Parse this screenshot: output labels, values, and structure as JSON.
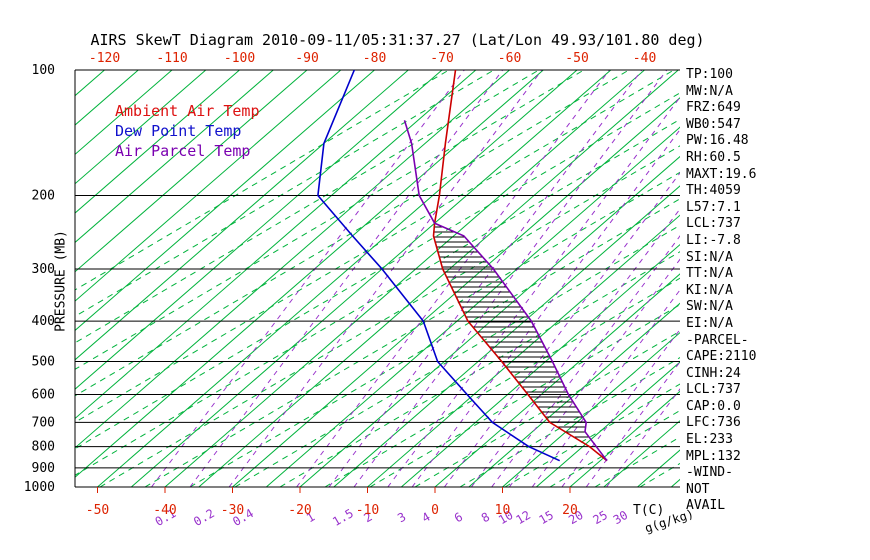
{
  "title": "AIRS SkewT Diagram 2010-09-11/05:31:37.27 (Lat/Lon 49.93/101.80 deg)",
  "axis": {
    "pressure_label": "PRESSURE (MB)",
    "temp_label": "T(C)",
    "mixratio_label": "g(g/kg)"
  },
  "legend": [
    {
      "label": "Ambient Air Temp",
      "color": "#dd1111"
    },
    {
      "label": "Dew Point Temp",
      "color": "#1111cc"
    },
    {
      "label": "Air Parcel Temp",
      "color": "#7a00b0"
    }
  ],
  "stats": [
    "TP:100",
    "MW:N/A",
    "FRZ:649",
    "WB0:547",
    "PW:16.48",
    "RH:60.5",
    "MAXT:19.6",
    "TH:4059",
    "L57:7.1",
    "LCL:737",
    "LI:-7.8",
    "SI:N/A",
    "TT:N/A",
    "KI:N/A",
    "SW:N/A",
    "EI:N/A",
    "-PARCEL-",
    "CAPE:2110",
    "CINH:24",
    "LCL:737",
    "CAP:0.0",
    "LFC:736",
    "EL:233",
    "MPL:132",
    "-WIND-",
    "NOT",
    "AVAIL"
  ],
  "chart_data": {
    "type": "skewt-log-p",
    "pressure_axis_mb": [
      100,
      200,
      300,
      400,
      500,
      600,
      700,
      800,
      900,
      1000
    ],
    "pressure_range_mb": [
      100,
      1000
    ],
    "top_temp_ticks_c": [
      -120,
      -110,
      -100,
      -90,
      -80,
      -70,
      -60,
      -50,
      -40
    ],
    "bottom_temp_ticks_c": [
      -50,
      -40,
      -30,
      -20,
      -10,
      0,
      10,
      20
    ],
    "mixing_ratio_labels_gkg": [
      0.1,
      0.2,
      0.4,
      1,
      1.5,
      2,
      3,
      4,
      6,
      8,
      10,
      12,
      15,
      20,
      25,
      30
    ],
    "isotherm_step_c": 5,
    "colors": {
      "isotherm": "#00b33c",
      "moist_adiabat": "#00b33c",
      "mixing_ratio": "#9933cc",
      "pressure_line": "#000000",
      "temp_axis_text": "#dd2200",
      "hatch": "#000000"
    },
    "series": [
      {
        "name": "Ambient Air Temp",
        "color": "#cc0000",
        "points_mb_c": [
          [
            865,
            21
          ],
          [
            800,
            16
          ],
          [
            700,
            6
          ],
          [
            600,
            -2
          ],
          [
            500,
            -11.5
          ],
          [
            400,
            -23.4
          ],
          [
            300,
            -36
          ],
          [
            250,
            -43
          ],
          [
            233,
            -45
          ],
          [
            200,
            -49
          ],
          [
            150,
            -57
          ],
          [
            100,
            -68
          ]
        ]
      },
      {
        "name": "Dew Point Temp",
        "color": "#0000cc",
        "points_mb_c": [
          [
            865,
            14
          ],
          [
            800,
            7
          ],
          [
            700,
            -2.5
          ],
          [
            600,
            -11
          ],
          [
            500,
            -21
          ],
          [
            400,
            -30
          ],
          [
            300,
            -45
          ],
          [
            250,
            -55
          ],
          [
            200,
            -67
          ],
          [
            150,
            -75
          ],
          [
            100,
            -83
          ]
        ]
      },
      {
        "name": "Air Parcel Temp",
        "color": "#7a00b0",
        "points_mb_c": [
          [
            865,
            21
          ],
          [
            737,
            12.8
          ],
          [
            700,
            11.4
          ],
          [
            600,
            4
          ],
          [
            500,
            -4
          ],
          [
            400,
            -14
          ],
          [
            300,
            -28.5
          ],
          [
            250,
            -38.5
          ],
          [
            233,
            -45
          ],
          [
            200,
            -52
          ],
          [
            150,
            -62
          ],
          [
            132,
            -67
          ]
        ]
      }
    ],
    "cape_region": {
      "between": [
        "Ambient Air Temp",
        "Air Parcel Temp"
      ],
      "from_mb": 737,
      "to_mb": 233,
      "hatch": "horizontal"
    }
  }
}
